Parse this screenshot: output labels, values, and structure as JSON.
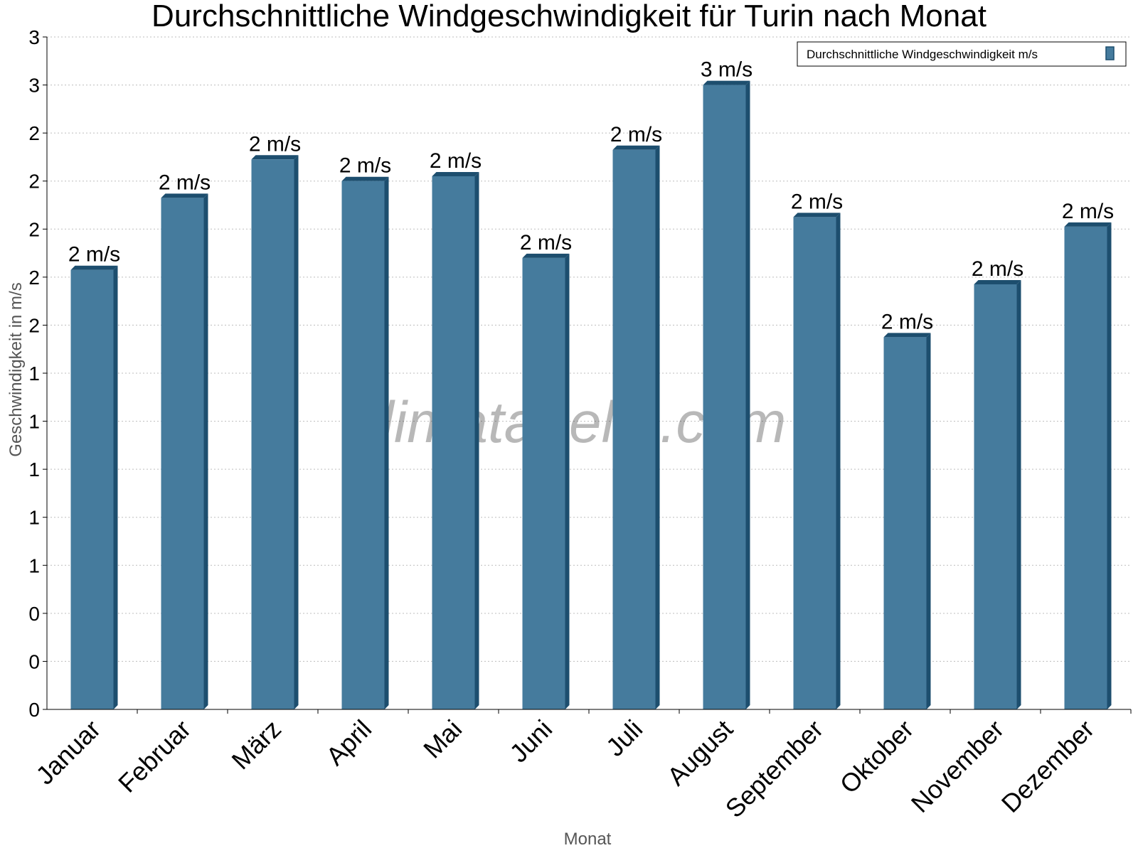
{
  "chart_data": {
    "type": "bar",
    "title": "Durchschnittliche Windgeschwindigkeit für Turin nach Monat",
    "xlabel": "Monat",
    "ylabel": "Geschwindigkeit in m/s",
    "categories": [
      "Januar",
      "Februar",
      "März",
      "April",
      "Mai",
      "Juni",
      "Juli",
      "August",
      "September",
      "Oktober",
      "November",
      "Dezember"
    ],
    "series": [
      {
        "name": "Durchschnittliche Windgeschwindigkeit m/s",
        "values": [
          1.83,
          2.13,
          2.29,
          2.2,
          2.22,
          1.88,
          2.33,
          2.6,
          2.05,
          1.55,
          1.77,
          2.01
        ],
        "labels": [
          "2 m/s",
          "2 m/s",
          "2 m/s",
          "2 m/s",
          "2 m/s",
          "2 m/s",
          "2 m/s",
          "3 m/s",
          "2 m/s",
          "2 m/s",
          "2 m/s",
          "2 m/s"
        ],
        "color": "#457b9d"
      }
    ],
    "ylim": [
      0,
      2.8
    ],
    "yticks": [
      0,
      0.2,
      0.4,
      0.6,
      0.8,
      1.0,
      1.2,
      1.4,
      1.6,
      1.8,
      2.0,
      2.2,
      2.4,
      2.6,
      2.8
    ],
    "ytick_labels": [
      "0",
      "0",
      "0",
      "1",
      "1",
      "1",
      "1",
      "1",
      "2",
      "2",
      "2",
      "2",
      "2",
      "3",
      "3"
    ],
    "grid": true,
    "legend_position": "top-right",
    "watermark": "klimatabelle.com"
  }
}
